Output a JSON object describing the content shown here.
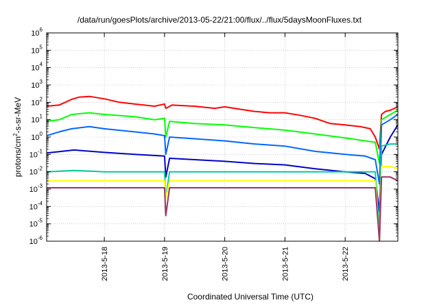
{
  "chart_data": {
    "type": "line",
    "title": "/data/run/goesPlots/archive/2013-05-22/21:00/flux/../flux/5daysMoonFluxes.txt",
    "xlabel": "Coordinated Universal Time (UTC)",
    "ylabel": "protons/cm2-s-sr-MeV",
    "y_scale": "log",
    "ylim": [
      1e-06,
      1000000.0
    ],
    "xlim": [
      "2013-05-17T01:00",
      "2013-05-22T21:00"
    ],
    "x_ticks": [
      "2013-5-18",
      "2013-5-19",
      "2013-5-20",
      "2013-5-21",
      "2013-5-22"
    ],
    "y_ticks": [
      "10^-6",
      "10^-5",
      "10^-4",
      "10^-3",
      "10^-2",
      "10^-1",
      "10^0",
      "10^1",
      "10^2",
      "10^3",
      "10^4",
      "10^5",
      "10^6"
    ],
    "grid": true,
    "legend": "none",
    "series": [
      {
        "color": "#ff0000",
        "points": [
          [
            "2013-05-17T01:00",
            60
          ],
          [
            "2013-05-17T06:00",
            70
          ],
          [
            "2013-05-17T11:00",
            150
          ],
          [
            "2013-05-17T14:00",
            200
          ],
          [
            "2013-05-17T18:00",
            220
          ],
          [
            "2013-05-18T00:00",
            160
          ],
          [
            "2013-05-18T06:00",
            100
          ],
          [
            "2013-05-18T12:00",
            80
          ],
          [
            "2013-05-18T20:00",
            60
          ],
          [
            "2013-05-19T00:00",
            80
          ],
          [
            "2013-05-19T00:30",
            45
          ],
          [
            "2013-05-19T03:00",
            70
          ],
          [
            "2013-05-19T12:00",
            60
          ],
          [
            "2013-05-19T20:00",
            45
          ],
          [
            "2013-05-20T00:00",
            55
          ],
          [
            "2013-05-20T06:00",
            40
          ],
          [
            "2013-05-20T12:00",
            30
          ],
          [
            "2013-05-20T18:00",
            25
          ],
          [
            "2013-05-21T00:00",
            25
          ],
          [
            "2013-05-21T06:00",
            18
          ],
          [
            "2013-05-21T12:00",
            12
          ],
          [
            "2013-05-21T18:00",
            6
          ],
          [
            "2013-05-22T00:00",
            5
          ],
          [
            "2013-05-22T06:00",
            4
          ],
          [
            "2013-05-22T10:00",
            3
          ],
          [
            "2013-05-22T12:00",
            1
          ],
          [
            "2013-05-22T13:40",
            0.2
          ],
          [
            "2013-05-22T14:30",
            20
          ],
          [
            "2013-05-22T16:00",
            30
          ],
          [
            "2013-05-22T18:00",
            35
          ],
          [
            "2013-05-22T21:00",
            55
          ]
        ]
      },
      {
        "color": "#00ff00",
        "points": [
          [
            "2013-05-17T01:00",
            8
          ],
          [
            "2013-05-17T06:00",
            10
          ],
          [
            "2013-05-17T11:00",
            20
          ],
          [
            "2013-05-17T18:00",
            25
          ],
          [
            "2013-05-18T00:00",
            20
          ],
          [
            "2013-05-18T12:00",
            15
          ],
          [
            "2013-05-18T20:00",
            10
          ],
          [
            "2013-05-19T00:00",
            12
          ],
          [
            "2013-05-19T00:30",
            1
          ],
          [
            "2013-05-19T02:00",
            8
          ],
          [
            "2013-05-19T12:00",
            6
          ],
          [
            "2013-05-20T00:00",
            5
          ],
          [
            "2013-05-20T12:00",
            3.5
          ],
          [
            "2013-05-21T00:00",
            2.5
          ],
          [
            "2013-05-21T12:00",
            1.5
          ],
          [
            "2013-05-22T00:00",
            0.9
          ],
          [
            "2013-05-22T08:00",
            0.6
          ],
          [
            "2013-05-22T12:00",
            0.5
          ],
          [
            "2013-05-22T13:40",
            0.03
          ],
          [
            "2013-05-22T14:30",
            10
          ],
          [
            "2013-05-22T18:00",
            20
          ],
          [
            "2013-05-22T21:00",
            35
          ]
        ]
      },
      {
        "color": "#0066ff",
        "points": [
          [
            "2013-05-17T01:00",
            1.2
          ],
          [
            "2013-05-17T06:00",
            2
          ],
          [
            "2013-05-17T11:00",
            3
          ],
          [
            "2013-05-17T18:00",
            4
          ],
          [
            "2013-05-18T00:00",
            3
          ],
          [
            "2013-05-18T12:00",
            2
          ],
          [
            "2013-05-18T20:00",
            1.5
          ],
          [
            "2013-05-19T00:00",
            1.2
          ],
          [
            "2013-05-19T00:30",
            0.1
          ],
          [
            "2013-05-19T02:00",
            1
          ],
          [
            "2013-05-19T12:00",
            0.8
          ],
          [
            "2013-05-20T00:00",
            0.6
          ],
          [
            "2013-05-20T12:00",
            0.4
          ],
          [
            "2013-05-21T00:00",
            0.3
          ],
          [
            "2013-05-21T12:00",
            0.15
          ],
          [
            "2013-05-22T00:00",
            0.1
          ],
          [
            "2013-05-22T08:00",
            0.08
          ],
          [
            "2013-05-22T12:00",
            0.05
          ],
          [
            "2013-05-22T13:40",
            0.002
          ],
          [
            "2013-05-22T14:30",
            5
          ],
          [
            "2013-05-22T18:00",
            10
          ],
          [
            "2013-05-22T21:00",
            20
          ]
        ]
      },
      {
        "color": "#0000cc",
        "points": [
          [
            "2013-05-17T01:00",
            0.12
          ],
          [
            "2013-05-17T12:00",
            0.18
          ],
          [
            "2013-05-18T00:00",
            0.13
          ],
          [
            "2013-05-18T12:00",
            0.1
          ],
          [
            "2013-05-19T00:00",
            0.08
          ],
          [
            "2013-05-19T00:30",
            0.005
          ],
          [
            "2013-05-19T02:00",
            0.06
          ],
          [
            "2013-05-19T12:00",
            0.05
          ],
          [
            "2013-05-20T00:00",
            0.04
          ],
          [
            "2013-05-20T12:00",
            0.03
          ],
          [
            "2013-05-21T00:00",
            0.025
          ],
          [
            "2013-05-21T12:00",
            0.015
          ],
          [
            "2013-05-22T00:00",
            0.01
          ],
          [
            "2013-05-22T08:00",
            0.008
          ],
          [
            "2013-05-22T12:00",
            0.004
          ],
          [
            "2013-05-22T13:40",
            5e-05
          ],
          [
            "2013-05-22T14:30",
            0.1
          ],
          [
            "2013-05-22T18:00",
            1
          ],
          [
            "2013-05-22T21:00",
            5
          ]
        ]
      },
      {
        "color": "#00cc99",
        "points": [
          [
            "2013-05-17T01:00",
            0.01
          ],
          [
            "2013-05-17T12:00",
            0.012
          ],
          [
            "2013-05-18T00:00",
            0.01
          ],
          [
            "2013-05-18T12:00",
            0.01
          ],
          [
            "2013-05-19T00:00",
            0.01
          ],
          [
            "2013-05-19T00:30",
            0.0003
          ],
          [
            "2013-05-19T02:00",
            0.01
          ],
          [
            "2013-05-20T00:00",
            0.01
          ],
          [
            "2013-05-21T00:00",
            0.01
          ],
          [
            "2013-05-22T00:00",
            0.01
          ],
          [
            "2013-05-22T12:00",
            0.01
          ],
          [
            "2013-05-22T13:40",
            5e-06
          ],
          [
            "2013-05-22T14:30",
            0.3
          ],
          [
            "2013-05-22T18:00",
            0.4
          ],
          [
            "2013-05-22T21:00",
            0.4
          ]
        ]
      },
      {
        "color": "#ffff00",
        "points": [
          [
            "2013-05-17T01:00",
            0.003
          ],
          [
            "2013-05-18T00:00",
            0.003
          ],
          [
            "2013-05-19T00:00",
            0.003
          ],
          [
            "2013-05-19T00:30",
            0.0003
          ],
          [
            "2013-05-19T02:00",
            0.003
          ],
          [
            "2013-05-20T00:00",
            0.003
          ],
          [
            "2013-05-21T00:00",
            0.003
          ],
          [
            "2013-05-22T00:00",
            0.003
          ],
          [
            "2013-05-22T12:00",
            0.003
          ],
          [
            "2013-05-22T13:40",
            1e-06
          ],
          [
            "2013-05-22T14:30",
            0.02
          ],
          [
            "2013-05-22T18:00",
            0.02
          ],
          [
            "2013-05-22T21:00",
            0.015
          ]
        ]
      },
      {
        "color": "#993366",
        "points": [
          [
            "2013-05-17T01:00",
            0.0012
          ],
          [
            "2013-05-18T00:00",
            0.0012
          ],
          [
            "2013-05-19T00:00",
            0.0012
          ],
          [
            "2013-05-19T00:30",
            3e-05
          ],
          [
            "2013-05-19T02:00",
            0.0012
          ],
          [
            "2013-05-20T00:00",
            0.0012
          ],
          [
            "2013-05-21T00:00",
            0.0012
          ],
          [
            "2013-05-22T00:00",
            0.0012
          ],
          [
            "2013-05-22T12:00",
            0.0012
          ],
          [
            "2013-05-22T13:40",
            1e-06
          ],
          [
            "2013-05-22T14:30",
            0.005
          ],
          [
            "2013-05-22T18:00",
            0.005
          ],
          [
            "2013-05-22T21:00",
            0.003
          ]
        ]
      }
    ]
  }
}
